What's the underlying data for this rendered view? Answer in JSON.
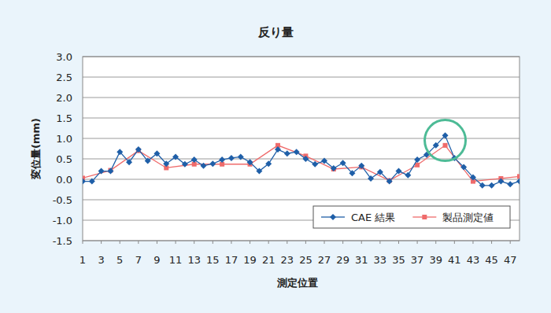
{
  "chart_data": {
    "type": "line",
    "title": "反り量",
    "x_label": "測定位置",
    "y_label": "変位量(mm)",
    "xlim": [
      1,
      48
    ],
    "xticks": [
      1,
      3,
      5,
      7,
      9,
      11,
      13,
      15,
      17,
      19,
      21,
      23,
      25,
      27,
      29,
      31,
      33,
      35,
      37,
      39,
      41,
      43,
      45,
      47
    ],
    "ylim": [
      -1.5,
      3.0
    ],
    "yticks": [
      -1.5,
      {
        "value": -1.0,
        "label": "-1.0"
      },
      -0.5,
      {
        "value": 0,
        "label": "0.0"
      },
      0.5,
      {
        "value": 1.0,
        "label": "1.0"
      },
      1.5,
      {
        "value": 2.0,
        "label": "2.0"
      },
      2.5,
      {
        "value": 3.0,
        "label": "3.0"
      }
    ],
    "grid": true,
    "legend": "lower right",
    "series": [
      {
        "name": "CAE 結果",
        "color": "#1f5fa8",
        "marker": "diamond",
        "x": [
          1,
          2,
          3,
          4,
          5,
          6,
          7,
          8,
          9,
          10,
          11,
          12,
          13,
          14,
          15,
          16,
          17,
          18,
          19,
          20,
          21,
          22,
          23,
          24,
          25,
          26,
          27,
          28,
          29,
          30,
          31,
          32,
          33,
          34,
          35,
          36,
          37,
          38,
          39,
          40,
          41,
          42,
          43,
          44,
          45,
          46,
          47,
          48
        ],
        "values": [
          -0.05,
          -0.05,
          0.2,
          0.2,
          0.67,
          0.42,
          0.73,
          0.45,
          0.63,
          0.38,
          0.55,
          0.37,
          0.48,
          0.33,
          0.38,
          0.48,
          0.52,
          0.55,
          0.42,
          0.2,
          0.38,
          0.73,
          0.63,
          0.67,
          0.5,
          0.37,
          0.45,
          0.27,
          0.4,
          0.15,
          0.33,
          0.02,
          0.18,
          -0.05,
          0.2,
          0.1,
          0.48,
          0.6,
          0.83,
          1.07,
          0.52,
          0.3,
          0.05,
          -0.15,
          -0.15,
          -0.05,
          -0.12,
          -0.05
        ]
      },
      {
        "name": "製品測定値",
        "color": "#ef6b6b",
        "marker": "square",
        "x": [
          1,
          4,
          7,
          10,
          13,
          16,
          19,
          22,
          25,
          28,
          31,
          34,
          37,
          40,
          43,
          46,
          48
        ],
        "values": [
          0.03,
          0.22,
          0.7,
          0.28,
          0.37,
          0.37,
          0.37,
          0.83,
          0.57,
          0.25,
          0.3,
          -0.03,
          0.35,
          0.83,
          -0.05,
          0.02,
          0.07
        ]
      }
    ],
    "annotations": [
      {
        "type": "circle",
        "x": 40,
        "y": 0.95,
        "color": "#4dbb96"
      }
    ]
  }
}
